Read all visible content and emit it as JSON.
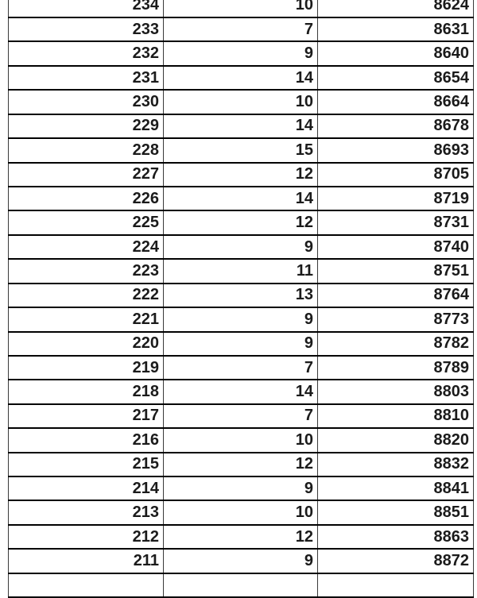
{
  "table": {
    "description_colors": {
      "grid_horizontal_border": "#000000",
      "grid_vertical_border": "#3a3a3a",
      "text": "#1b1b1b",
      "cell_background": "#ffffff"
    },
    "rows": [
      [
        "234",
        "10",
        "8624"
      ],
      [
        "233",
        "7",
        "8631"
      ],
      [
        "232",
        "9",
        "8640"
      ],
      [
        "231",
        "14",
        "8654"
      ],
      [
        "230",
        "10",
        "8664"
      ],
      [
        "229",
        "14",
        "8678"
      ],
      [
        "228",
        "15",
        "8693"
      ],
      [
        "227",
        "12",
        "8705"
      ],
      [
        "226",
        "14",
        "8719"
      ],
      [
        "225",
        "12",
        "8731"
      ],
      [
        "224",
        "9",
        "8740"
      ],
      [
        "223",
        "11",
        "8751"
      ],
      [
        "222",
        "13",
        "8764"
      ],
      [
        "221",
        "9",
        "8773"
      ],
      [
        "220",
        "9",
        "8782"
      ],
      [
        "219",
        "7",
        "8789"
      ],
      [
        "218",
        "14",
        "8803"
      ],
      [
        "217",
        "7",
        "8810"
      ],
      [
        "216",
        "10",
        "8820"
      ],
      [
        "215",
        "12",
        "8832"
      ],
      [
        "214",
        "9",
        "8841"
      ],
      [
        "213",
        "10",
        "8851"
      ],
      [
        "212",
        "12",
        "8863"
      ],
      [
        "211",
        "9",
        "8872"
      ]
    ],
    "partial_bottom_row": [
      "",
      "",
      ""
    ]
  }
}
